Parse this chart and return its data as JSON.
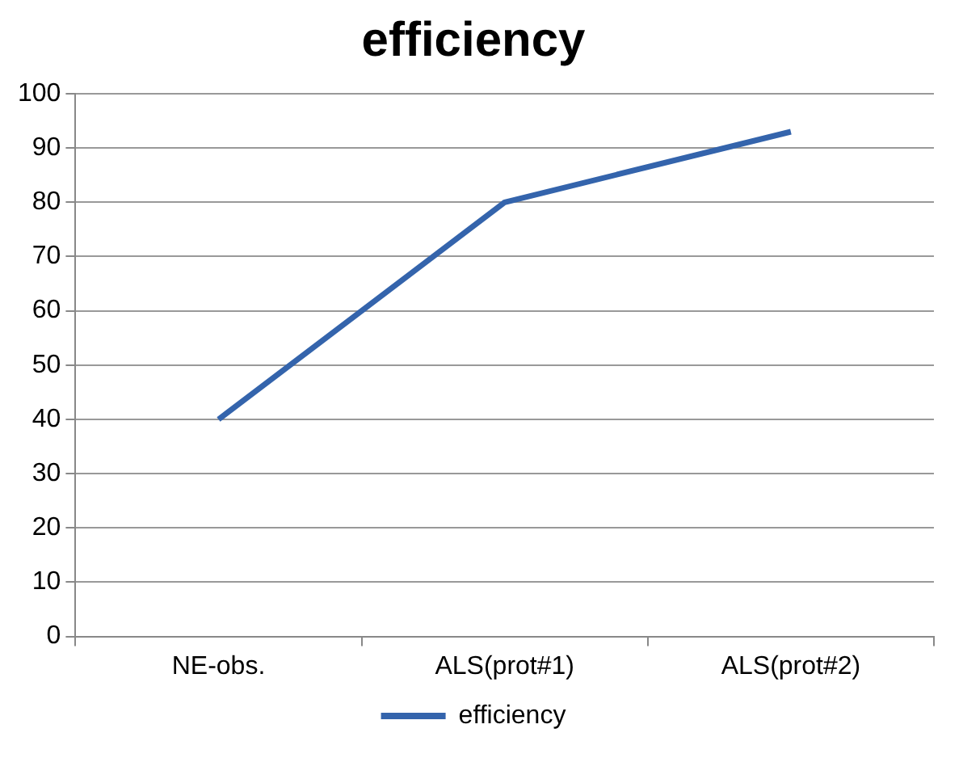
{
  "chart_data": {
    "type": "line",
    "title": "efficiency",
    "categories": [
      "NE-obs.",
      "ALS(prot#1)",
      "ALS(prot#2)"
    ],
    "series": [
      {
        "name": "efficiency",
        "color": "#3464ac",
        "values": [
          40,
          80,
          93
        ]
      }
    ],
    "ylim": [
      0,
      100
    ],
    "yticks": [
      0,
      10,
      20,
      30,
      40,
      50,
      60,
      70,
      80,
      90,
      100
    ],
    "grid": "y",
    "legend": "bottom",
    "marker": "none",
    "line_style": "solid"
  }
}
